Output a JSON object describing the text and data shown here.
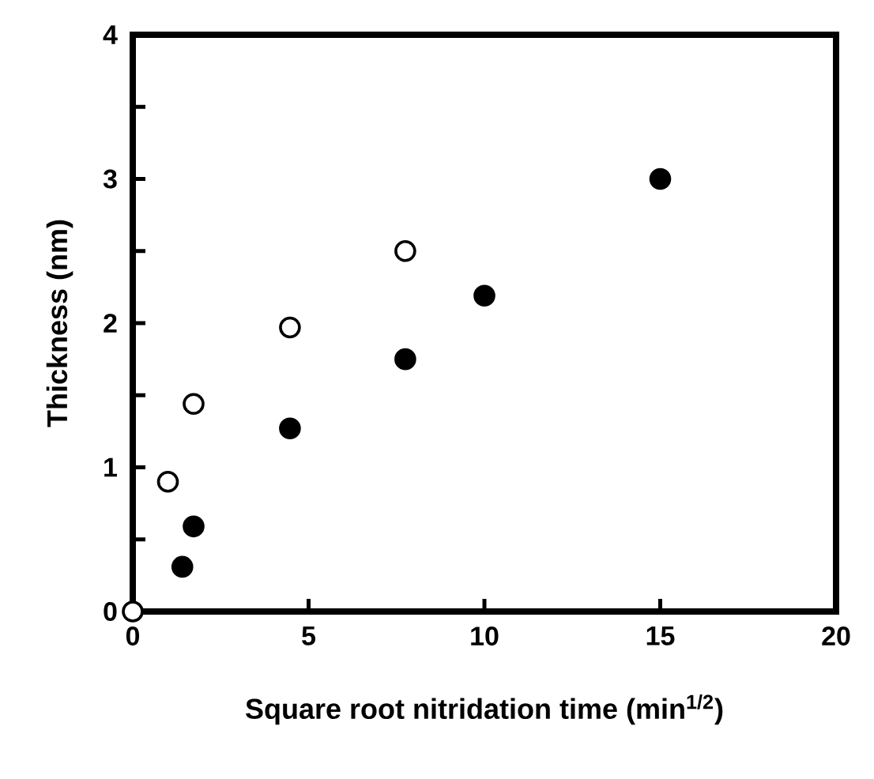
{
  "chart_data": {
    "type": "scatter",
    "xlabel": "Square root nitridation time (min$^{1/2}$)",
    "ylabel": "Thickness (nm)",
    "xlim": [
      0,
      20
    ],
    "xticks": [
      0,
      5,
      10,
      15,
      20
    ],
    "ylim": [
      0,
      4
    ],
    "yticks": [
      0,
      {
        "value": 0.5,
        "label": null
      },
      1,
      {
        "value": 1.5,
        "label": null
      },
      2,
      {
        "value": 2.5,
        "label": null
      },
      3,
      {
        "value": 3.5,
        "label": null
      },
      4
    ],
    "grid": false,
    "marker": "circle",
    "series": [
      {
        "color": "#000000",
        "x": [
          1.41,
          1.73,
          4.47,
          7.75,
          10,
          15
        ],
        "values": [
          0.31,
          0.59,
          1.27,
          1.75,
          2.19,
          3.0
        ]
      },
      {
        "color": "#ffffff",
        "x": [
          0,
          1,
          1.73,
          4.47,
          7.75
        ],
        "values": [
          0,
          0.9,
          1.44,
          1.97,
          2.5
        ]
      }
    ]
  }
}
